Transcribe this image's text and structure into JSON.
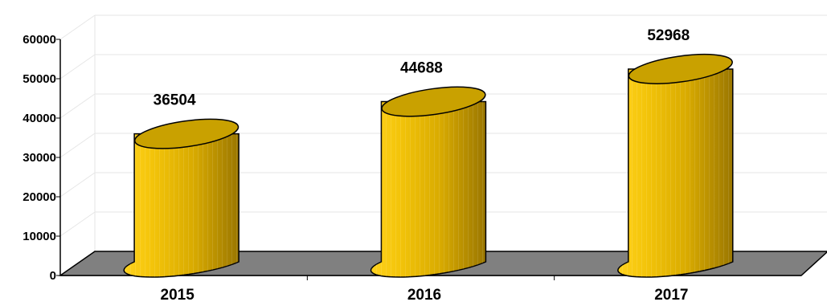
{
  "chart_data": {
    "type": "bar",
    "style": "3d-cylinder",
    "categories": [
      "2015",
      "2016",
      "2017"
    ],
    "values": [
      36504,
      44688,
      52968
    ],
    "title": "",
    "xlabel": "",
    "ylabel": "",
    "ylim": [
      0,
      60000
    ],
    "yticks": [
      "0",
      "10000",
      "20000",
      "30000",
      "40000",
      "50000",
      "60000"
    ],
    "grid": true,
    "legend": "none",
    "colors": {
      "bar_light": "#ffd21c",
      "bar_mid": "#e6b400",
      "bar_dark": "#9a7600",
      "bar_top": "#c9a100",
      "floor": "#808080",
      "grid": "#e6e6e6",
      "axis": "#000000"
    }
  }
}
